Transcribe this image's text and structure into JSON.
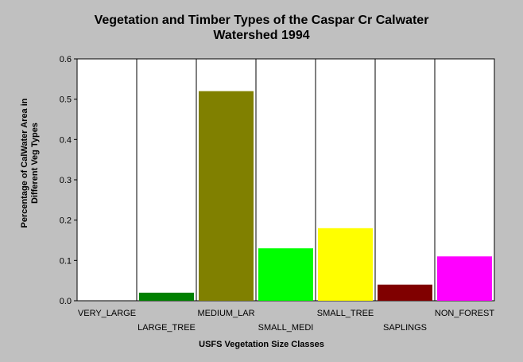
{
  "chart_data": {
    "type": "bar",
    "title_lines": [
      "Vegetation and Timber Types of the Caspar Cr Calwater",
      "Watershed 1994"
    ],
    "xlabel": "USFS Vegetation Size Classes",
    "ylabel_lines": [
      "Percentage of CalWater Area in",
      "Different Veg Types"
    ],
    "categories": [
      "VERY_LARGE",
      "LARGE_TREE",
      "MEDIUM_LAR",
      "SMALL_MEDI",
      "SMALL_TREE",
      "SAPLINGS",
      "NON_FOREST"
    ],
    "values": [
      0.0,
      0.02,
      0.52,
      0.13,
      0.18,
      0.04,
      0.11
    ],
    "colors": [
      "#008000",
      "#008000",
      "#808000",
      "#00ff00",
      "#ffff00",
      "#800000",
      "#ff00ff"
    ],
    "yticks": [
      "0.0",
      "0.1",
      "0.2",
      "0.3",
      "0.4",
      "0.5",
      "0.6"
    ],
    "ylim": [
      0,
      0.6
    ],
    "grid": "vertical",
    "legend": "none"
  }
}
